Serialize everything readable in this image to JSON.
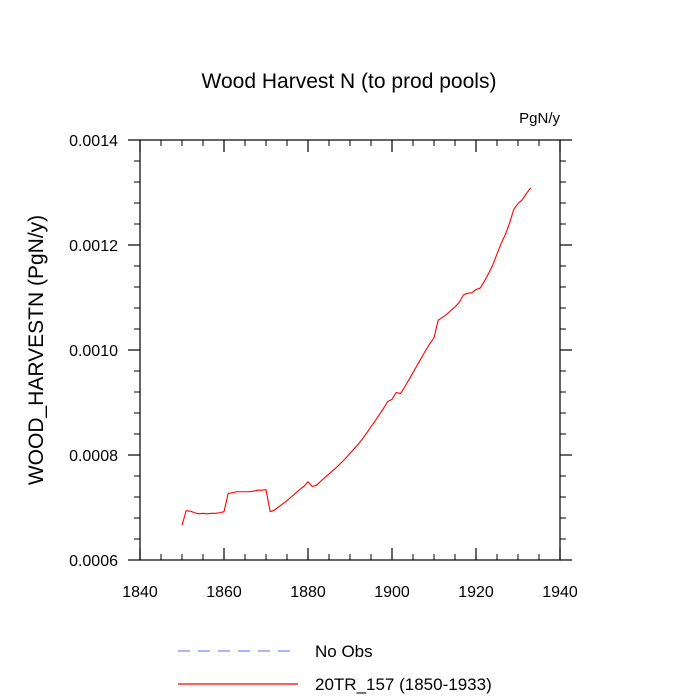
{
  "chart_data": {
    "type": "line",
    "title": "Wood Harvest N (to prod pools)",
    "units": "PgN/y",
    "xlabel": "",
    "ylabel": "WOOD_HARVESTN  (PgN/y)",
    "xlim": [
      1840,
      1940
    ],
    "ylim": [
      0.0006,
      0.0014
    ],
    "xticks": [
      1840,
      1860,
      1880,
      1900,
      1920,
      1940
    ],
    "xtick_labels": [
      "1840",
      "1860",
      "1880",
      "1900",
      "1920",
      "1940"
    ],
    "yticks": [
      0.0006,
      0.0008,
      0.001,
      0.0012,
      0.0014
    ],
    "ytick_labels": [
      "0.0006",
      "0.0008",
      "0.0010",
      "0.0012",
      "0.0014"
    ],
    "grid": false,
    "legend_position": "bottom",
    "series": [
      {
        "name": "No Obs",
        "color": "#8080ff",
        "style": "dashed",
        "x": [],
        "y": []
      },
      {
        "name": "20TR_157 (1850-1933)",
        "color": "#ff0000",
        "style": "solid",
        "x": [
          1850,
          1851,
          1852,
          1853,
          1854,
          1855,
          1856,
          1857,
          1858,
          1859,
          1860,
          1861,
          1862,
          1863,
          1864,
          1865,
          1866,
          1867,
          1868,
          1869,
          1870,
          1871,
          1872,
          1873,
          1874,
          1875,
          1876,
          1877,
          1878,
          1879,
          1880,
          1881,
          1882,
          1883,
          1884,
          1885,
          1886,
          1887,
          1888,
          1889,
          1890,
          1891,
          1892,
          1893,
          1894,
          1895,
          1896,
          1897,
          1898,
          1899,
          1900,
          1901,
          1902,
          1903,
          1904,
          1905,
          1906,
          1907,
          1908,
          1909,
          1910,
          1911,
          1912,
          1913,
          1914,
          1915,
          1916,
          1917,
          1918,
          1919,
          1920,
          1921,
          1922,
          1923,
          1924,
          1925,
          1926,
          1927,
          1928,
          1929,
          1930,
          1931,
          1932,
          1933
        ],
        "y": [
          0.000666,
          0.000694,
          0.000693,
          0.00069,
          0.000688,
          0.000689,
          0.000688,
          0.000689,
          0.000689,
          0.00069,
          0.000692,
          0.000727,
          0.000728,
          0.00073,
          0.00073,
          0.00073,
          0.00073,
          0.000731,
          0.000733,
          0.000733,
          0.000734,
          0.000692,
          0.000695,
          0.000701,
          0.000707,
          0.000713,
          0.00072,
          0.000727,
          0.000734,
          0.00074,
          0.000749,
          0.00074,
          0.000742,
          0.00075,
          0.000757,
          0.000764,
          0.000771,
          0.000778,
          0.000786,
          0.000794,
          0.000803,
          0.000812,
          0.000821,
          0.000831,
          0.000842,
          0.000854,
          0.000865,
          0.000877,
          0.000889,
          0.000902,
          0.000906,
          0.000919,
          0.000917,
          0.000929,
          0.000943,
          0.000957,
          0.000971,
          0.000985,
          0.000999,
          0.001012,
          0.001023,
          0.001057,
          0.001062,
          0.001068,
          0.001075,
          0.001082,
          0.001091,
          0.001105,
          0.001108,
          0.001109,
          0.001115,
          0.001118,
          0.001131,
          0.001146,
          0.001162,
          0.001183,
          0.001203,
          0.00122,
          0.001242,
          0.001268,
          0.001279,
          0.001286,
          0.001298,
          0.001309
        ]
      }
    ]
  }
}
